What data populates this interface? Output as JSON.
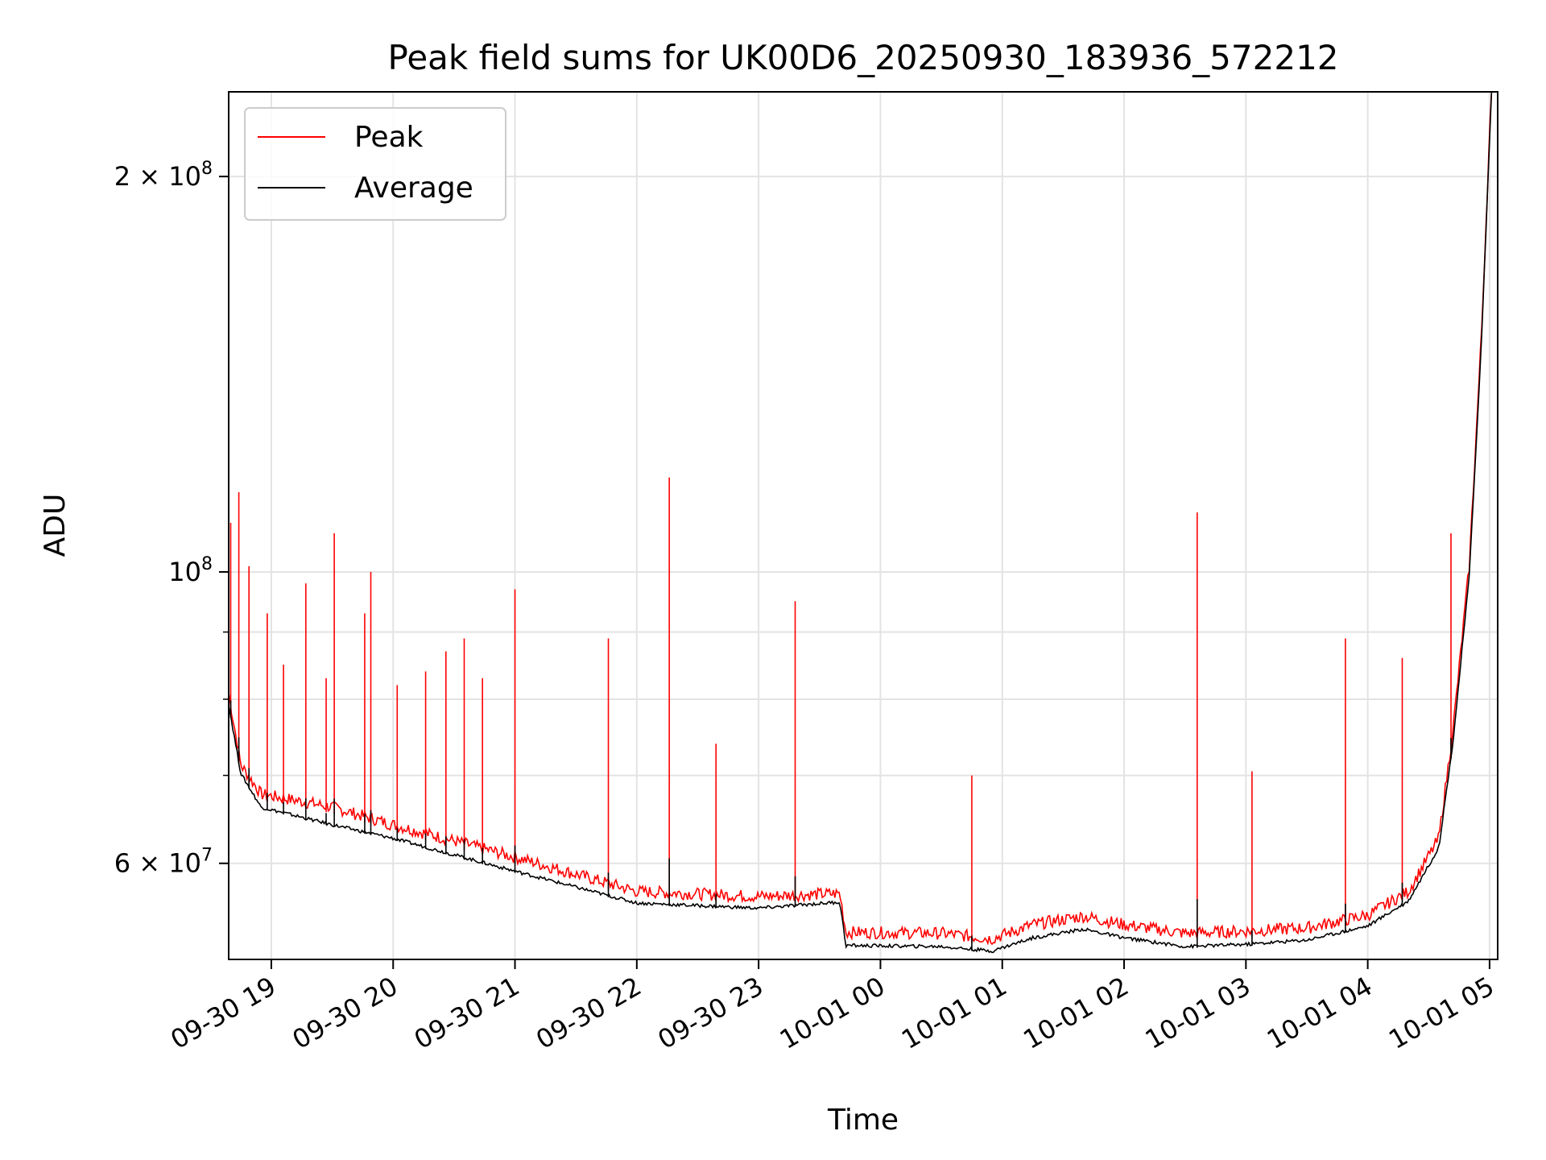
{
  "chart_data": {
    "type": "line",
    "title": "Peak field sums for UK00D6_20250930_183936_572212",
    "xlabel": "Time",
    "ylabel": "ADU",
    "yscale": "log",
    "xlim": [
      "2025-09-30 18:39",
      "2025-10-01 05:04"
    ],
    "ylim": [
      50700000,
      232000000
    ],
    "grid": true,
    "legend_position": "upper left",
    "x_ticks": [
      {
        "value": "2025-09-30 19:00",
        "label": "09-30 19"
      },
      {
        "value": "2025-09-30 20:00",
        "label": "09-30 20"
      },
      {
        "value": "2025-09-30 21:00",
        "label": "09-30 21"
      },
      {
        "value": "2025-09-30 22:00",
        "label": "09-30 22"
      },
      {
        "value": "2025-09-30 23:00",
        "label": "09-30 23"
      },
      {
        "value": "2025-10-01 00:00",
        "label": "10-01 00"
      },
      {
        "value": "2025-10-01 01:00",
        "label": "10-01 01"
      },
      {
        "value": "2025-10-01 02:00",
        "label": "10-01 02"
      },
      {
        "value": "2025-10-01 03:00",
        "label": "10-01 03"
      },
      {
        "value": "2025-10-01 04:00",
        "label": "10-01 04"
      },
      {
        "value": "2025-10-01 05:00",
        "label": "10-01 05"
      }
    ],
    "y_ticks": [
      {
        "value": 60000000,
        "base": "6",
        "exp": "7"
      },
      {
        "value": 100000000,
        "base": "",
        "exp": "8"
      },
      {
        "value": 200000000,
        "base": "2",
        "exp": "8"
      }
    ],
    "series": [
      {
        "name": "Peak",
        "color": "#ff0000",
        "baseline": [
          [
            "2025-09-30 18:39",
            80000000
          ],
          [
            "2025-09-30 18:45",
            70500000
          ],
          [
            "2025-09-30 18:55",
            67000000
          ],
          [
            "2025-09-30 19:30",
            65500000
          ],
          [
            "2025-09-30 20:00",
            63500000
          ],
          [
            "2025-09-30 21:00",
            60000000
          ],
          [
            "2025-09-30 22:00",
            56500000
          ],
          [
            "2025-09-30 23:00",
            56000000
          ],
          [
            "2025-09-30 23:40",
            56300000
          ],
          [
            "2025-09-30 23:43",
            52600000
          ],
          [
            "2025-10-01 00:30",
            52500000
          ],
          [
            "2025-10-01 00:55",
            52000000
          ],
          [
            "2025-10-01 01:15",
            53300000
          ],
          [
            "2025-10-01 01:40",
            54100000
          ],
          [
            "2025-10-01 02:00",
            53300000
          ],
          [
            "2025-10-01 02:30",
            52500000
          ],
          [
            "2025-10-01 03:00",
            52700000
          ],
          [
            "2025-10-01 03:30",
            53000000
          ],
          [
            "2025-10-01 04:00",
            54200000
          ],
          [
            "2025-10-01 04:20",
            56500000
          ],
          [
            "2025-10-01 04:35",
            62000000
          ],
          [
            "2025-10-01 04:42",
            75000000
          ],
          [
            "2025-10-01 04:50",
            100000000
          ],
          [
            "2025-10-01 04:56",
            150000000
          ],
          [
            "2025-10-01 05:01",
            232000000
          ]
        ],
        "spikes": [
          [
            "2025-09-30 18:40",
            109000000
          ],
          [
            "2025-09-30 18:44",
            115000000
          ],
          [
            "2025-09-30 18:49",
            101000000
          ],
          [
            "2025-09-30 18:58",
            93000000
          ],
          [
            "2025-09-30 19:06",
            85000000
          ],
          [
            "2025-09-30 19:17",
            98000000
          ],
          [
            "2025-09-30 19:27",
            83000000
          ],
          [
            "2025-09-30 19:31",
            107000000
          ],
          [
            "2025-09-30 19:46",
            93000000
          ],
          [
            "2025-09-30 19:49",
            100000000
          ],
          [
            "2025-09-30 20:02",
            82000000
          ],
          [
            "2025-09-30 20:16",
            84000000
          ],
          [
            "2025-09-30 20:26",
            87000000
          ],
          [
            "2025-09-30 20:35",
            89000000
          ],
          [
            "2025-09-30 20:44",
            83000000
          ],
          [
            "2025-09-30 21:00",
            97000000
          ],
          [
            "2025-09-30 21:46",
            89000000
          ],
          [
            "2025-09-30 22:16",
            118000000
          ],
          [
            "2025-09-30 22:39",
            74000000
          ],
          [
            "2025-09-30 23:18",
            95000000
          ],
          [
            "2025-10-01 00:45",
            70000000
          ],
          [
            "2025-10-01 02:36",
            111000000
          ],
          [
            "2025-10-01 03:03",
            70500000
          ],
          [
            "2025-10-01 03:49",
            89000000
          ],
          [
            "2025-10-01 04:17",
            86000000
          ],
          [
            "2025-10-01 04:41",
            107000000
          ]
        ]
      },
      {
        "name": "Average",
        "color": "#000000",
        "baseline": [
          [
            "2025-09-30 18:39",
            79000000
          ],
          [
            "2025-09-30 18:45",
            70000000
          ],
          [
            "2025-09-30 18:55",
            66000000
          ],
          [
            "2025-09-30 19:30",
            64000000
          ],
          [
            "2025-09-30 20:00",
            62500000
          ],
          [
            "2025-09-30 21:00",
            59000000
          ],
          [
            "2025-09-30 22:00",
            55800000
          ],
          [
            "2025-09-30 23:00",
            55300000
          ],
          [
            "2025-09-30 23:40",
            55900000
          ],
          [
            "2025-09-30 23:43",
            51800000
          ],
          [
            "2025-10-01 00:30",
            51700000
          ],
          [
            "2025-10-01 00:55",
            51300000
          ],
          [
            "2025-10-01 01:15",
            52500000
          ],
          [
            "2025-10-01 01:40",
            53300000
          ],
          [
            "2025-10-01 02:00",
            52500000
          ],
          [
            "2025-10-01 02:30",
            51700000
          ],
          [
            "2025-10-01 03:00",
            51900000
          ],
          [
            "2025-10-01 03:30",
            52300000
          ],
          [
            "2025-10-01 04:00",
            53600000
          ],
          [
            "2025-10-01 04:20",
            56000000
          ],
          [
            "2025-10-01 04:35",
            61500000
          ],
          [
            "2025-10-01 04:42",
            74000000
          ],
          [
            "2025-10-01 04:50",
            99000000
          ],
          [
            "2025-10-01 04:56",
            149000000
          ],
          [
            "2025-10-01 05:01",
            232000000
          ]
        ]
      }
    ]
  }
}
